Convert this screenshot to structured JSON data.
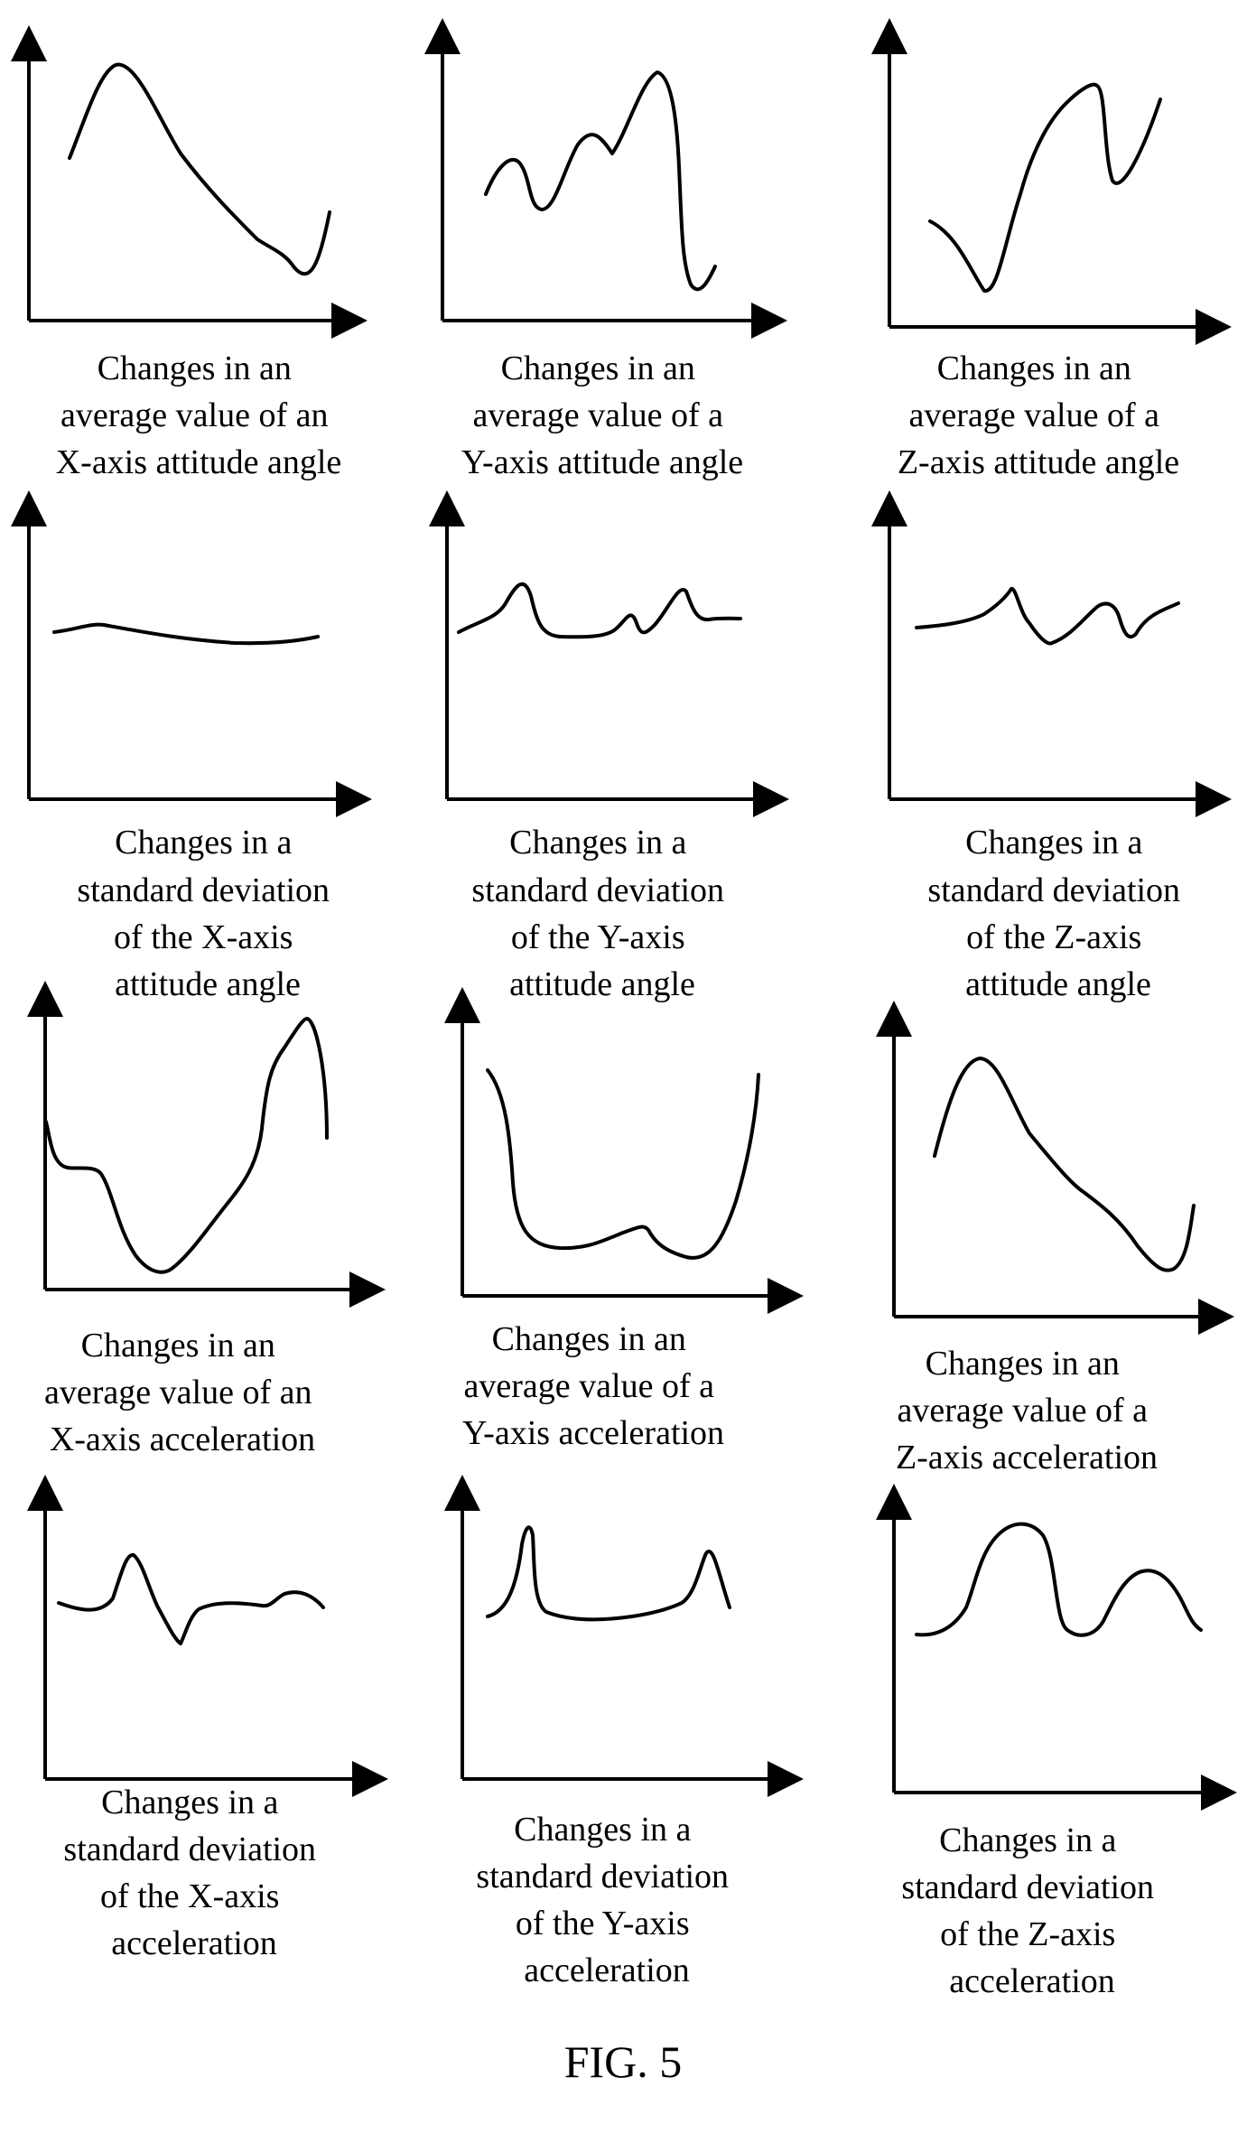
{
  "figure_label": "FIG. 5",
  "panels": [
    {
      "id": "x-avg-attitude",
      "caption": [
        "Changes in an",
        "average value of an",
        "X-axis attitude angle"
      ]
    },
    {
      "id": "y-avg-attitude",
      "caption": [
        "Changes in an",
        "average value of a",
        "Y-axis attitude angle"
      ]
    },
    {
      "id": "z-avg-attitude",
      "caption": [
        "Changes in an",
        "average value of a",
        "Z-axis attitude angle"
      ]
    },
    {
      "id": "x-std-attitude",
      "caption": [
        "Changes in a",
        "standard deviation",
        "of the X-axis",
        "attitude angle"
      ]
    },
    {
      "id": "y-std-attitude",
      "caption": [
        "Changes in a",
        "standard deviation",
        "of the Y-axis",
        "attitude angle"
      ]
    },
    {
      "id": "z-std-attitude",
      "caption": [
        "Changes in a",
        "standard deviation",
        "of the Z-axis",
        "attitude angle"
      ]
    },
    {
      "id": "x-avg-accel",
      "caption": [
        "Changes in an",
        "average value of an",
        "X-axis acceleration"
      ]
    },
    {
      "id": "y-avg-accel",
      "caption": [
        "Changes in an",
        "average value of a",
        "Y-axis acceleration"
      ]
    },
    {
      "id": "z-avg-accel",
      "caption": [
        "Changes in an",
        "average value of a",
        "Z-axis acceleration"
      ]
    },
    {
      "id": "x-std-accel",
      "caption": [
        "Changes in a",
        "standard deviation",
        "of the X-axis",
        "acceleration"
      ]
    },
    {
      "id": "y-std-accel",
      "caption": [
        "Changes in a",
        "standard deviation",
        "of the Y-axis",
        "acceleration"
      ]
    },
    {
      "id": "z-std-accel",
      "caption": [
        "Changes in a",
        "standard deviation",
        "of the Z-axis",
        "acceleration"
      ]
    }
  ]
}
